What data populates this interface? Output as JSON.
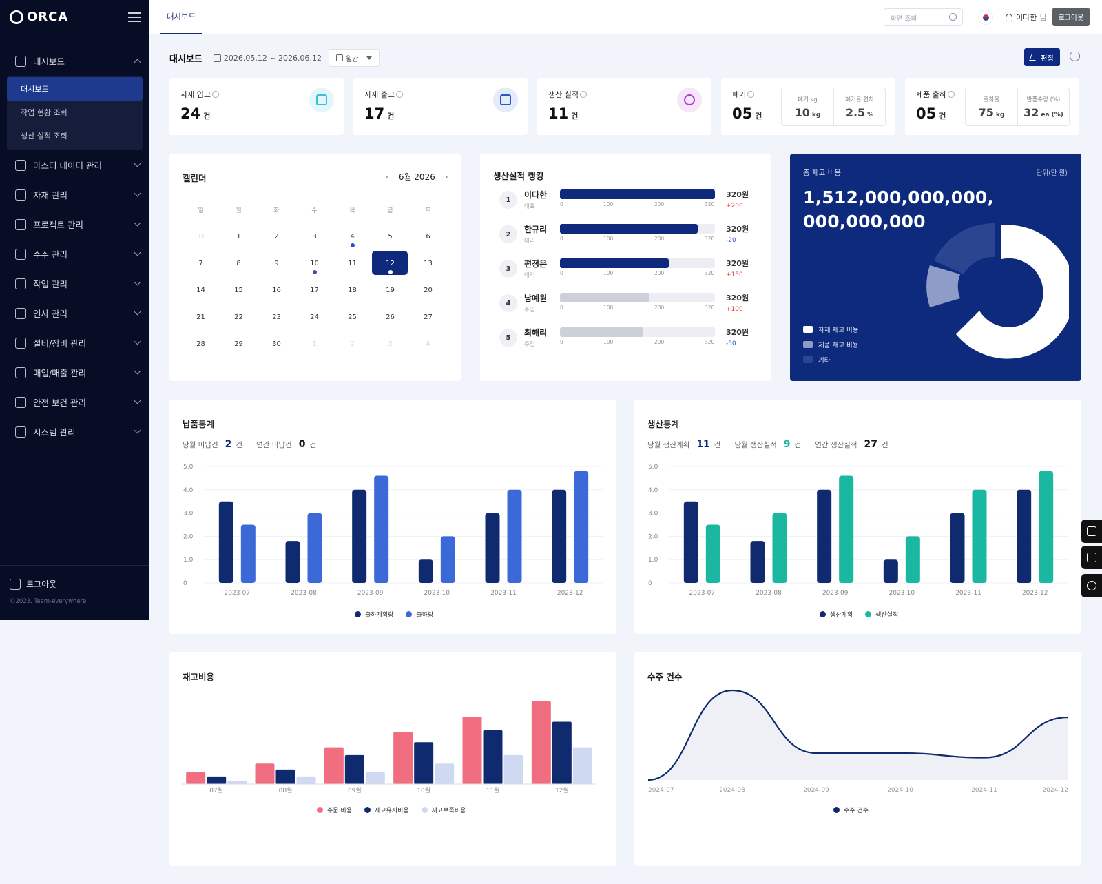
{
  "app": {
    "logo": "ORCA",
    "copyright": "©2023. Team-everywhere.",
    "logout": "로그아웃"
  },
  "sidebar": {
    "items": [
      {
        "label": "대시보드",
        "icon": "home-icon"
      },
      {
        "label": "마스터 데이터 관리",
        "icon": "database-icon"
      },
      {
        "label": "자재 관리",
        "icon": "box-icon"
      },
      {
        "label": "프로젝트 관리",
        "icon": "folder-icon"
      },
      {
        "label": "수주 관리",
        "icon": "document-icon"
      },
      {
        "label": "작업 관리",
        "icon": "tool-icon"
      },
      {
        "label": "인사 관리",
        "icon": "user-icon"
      },
      {
        "label": "설비/장비 관리",
        "icon": "wrench-icon"
      },
      {
        "label": "매입/매출 관리",
        "icon": "receipt-icon"
      },
      {
        "label": "안전 보건 관리",
        "icon": "shield-icon"
      },
      {
        "label": "시스템 관리",
        "icon": "key-icon"
      }
    ],
    "sub": [
      "대시보드",
      "작업 현황 조회",
      "생산 실적 조회"
    ]
  },
  "topbar": {
    "tab": "대시보드",
    "search_placeholder": "화면 조회",
    "user": "이다한",
    "user_suffix": "님",
    "logout": "로그아웃"
  },
  "header": {
    "title": "대시보드",
    "date_range": "2026.05.12 ~ 2026.06.12",
    "period": "월간",
    "edit": "편집"
  },
  "kpis": [
    {
      "label": "자재 입고",
      "value": "24",
      "unit": "건",
      "icon": "inbound-box-icon",
      "color": "#3bbfd9"
    },
    {
      "label": "자재 출고",
      "value": "17",
      "unit": "건",
      "icon": "outbound-box-icon",
      "color": "#2d55c8"
    },
    {
      "label": "생산 실적",
      "value": "11",
      "unit": "건",
      "icon": "pie-icon",
      "color": "#b13ad1"
    },
    {
      "label": "폐기",
      "value": "05",
      "unit": "건",
      "mini": [
        {
          "cap": "폐기 kg",
          "num": "10",
          "u": "kg"
        },
        {
          "cap": "폐기율 편차",
          "num": "2.5",
          "u": "%"
        }
      ]
    },
    {
      "label": "제품 출하",
      "value": "05",
      "unit": "건",
      "mini": [
        {
          "cap": "출하율",
          "num": "75",
          "u": "kg"
        },
        {
          "cap": "반품수량 (%)",
          "num": "32",
          "u": "ea (%)"
        }
      ]
    }
  ],
  "calendar": {
    "title": "캘린더",
    "month": "6월 2026",
    "weekdays": [
      "일",
      "월",
      "화",
      "수",
      "목",
      "금",
      "토"
    ],
    "weeks": [
      [
        "31",
        "1",
        "2",
        "3",
        "4",
        "5",
        "6"
      ],
      [
        "7",
        "8",
        "9",
        "10",
        "11",
        "12",
        "13"
      ],
      [
        "14",
        "15",
        "16",
        "17",
        "18",
        "19",
        "20"
      ],
      [
        "21",
        "22",
        "23",
        "24",
        "25",
        "26",
        "27"
      ],
      [
        "28",
        "29",
        "30",
        "1",
        "2",
        "3",
        "4"
      ]
    ],
    "selected": "12"
  },
  "ranking": {
    "title": "생산실적 랭킹",
    "ticks": [
      "0",
      "100",
      "200",
      "320"
    ],
    "rows": [
      {
        "rank": "1",
        "name": "이다한",
        "role": "대표",
        "amount": "320원",
        "change": "+200",
        "level": 320,
        "color": "#0f2a7d"
      },
      {
        "rank": "2",
        "name": "한규리",
        "role": "대리",
        "amount": "320원",
        "change": "-20",
        "level": 285,
        "color": "#0f2a7d"
      },
      {
        "rank": "3",
        "name": "편정은",
        "role": "대리",
        "amount": "320원",
        "change": "+150",
        "level": 225,
        "color": "#0f2a7d"
      },
      {
        "rank": "4",
        "name": "남예원",
        "role": "주임",
        "amount": "320원",
        "change": "+100",
        "level": 185,
        "color": "#cdd0d8"
      },
      {
        "rank": "5",
        "name": "최해리",
        "role": "주임",
        "amount": "320원",
        "change": "-50",
        "level": 172,
        "color": "#cdd0d8"
      }
    ]
  },
  "inventory": {
    "title": "총 재고 비용",
    "unit": "단위(만 원)",
    "amount": "1,512,000,000,000, 000,000,000",
    "legend": [
      {
        "label": "자재 재고 비용",
        "color": "#ffffff"
      },
      {
        "label": "제품 재고 비용",
        "color": "#8e9cc7"
      },
      {
        "label": "기타",
        "color": "#2c4590"
      }
    ]
  },
  "delivery": {
    "title": "납품통계",
    "s1_label": "당월 미납건",
    "s1": "2",
    "s2_label": "연간 미납건",
    "s2": "0",
    "unit": "건"
  },
  "production": {
    "title": "생산통계",
    "s1_label": "당월 생산계획",
    "s1": "11",
    "s2_label": "당월 생산실적",
    "s2": "9",
    "s3_label": "연간 생산실적",
    "s3": "27",
    "unit": "건"
  },
  "stock_cost": {
    "title": "재고비용"
  },
  "orders": {
    "title": "수주 건수"
  },
  "chart_data": [
    {
      "type": "bar",
      "title": "납품통계",
      "categories": [
        "2023-07",
        "2023-08",
        "2023-09",
        "2023-10",
        "2023-11",
        "2023-12"
      ],
      "ylim": [
        0,
        5.0
      ],
      "yticks": [
        "0",
        "1.0",
        "2.0",
        "3.0",
        "4.0",
        "5.0"
      ],
      "series": [
        {
          "name": "출하계획량",
          "color": "#0f2a6e",
          "values": [
            3.5,
            1.8,
            4.0,
            1.0,
            3.0,
            4.0
          ]
        },
        {
          "name": "출하량",
          "color": "#3b6ad8",
          "values": [
            2.5,
            3.0,
            4.6,
            2.0,
            4.0,
            4.8
          ]
        }
      ]
    },
    {
      "type": "bar",
      "title": "생산통계",
      "categories": [
        "2023-07",
        "2023-08",
        "2023-09",
        "2023-10",
        "2023-11",
        "2023-12"
      ],
      "ylim": [
        0,
        5.0
      ],
      "yticks": [
        "0",
        "1.0",
        "2.0",
        "3.0",
        "4.0",
        "5.0"
      ],
      "series": [
        {
          "name": "생산계획",
          "color": "#0f2a6e",
          "values": [
            3.5,
            1.8,
            4.0,
            1.0,
            3.0,
            4.0
          ]
        },
        {
          "name": "생산실적",
          "color": "#1ab8a0",
          "values": [
            2.5,
            3.0,
            4.6,
            2.0,
            4.0,
            4.8
          ]
        }
      ]
    },
    {
      "type": "bar",
      "title": "재고비용",
      "categories": [
        "07월",
        "08월",
        "09월",
        "10월",
        "11월",
        "12월"
      ],
      "ylim": [
        0,
        100
      ],
      "series": [
        {
          "name": "주문 비용",
          "color": "#f06e80",
          "values": [
            14,
            24,
            43,
            61,
            79,
            97
          ]
        },
        {
          "name": "재고유지비용",
          "color": "#0f2a6e",
          "values": [
            9,
            17,
            34,
            49,
            63,
            73
          ]
        },
        {
          "name": "재고부족비용",
          "color": "#cfd9f1",
          "values": [
            4,
            9,
            14,
            24,
            34,
            43
          ]
        }
      ]
    },
    {
      "type": "area",
      "title": "수주 건수",
      "categories": [
        "2024-07",
        "2024-08",
        "2024-09",
        "2024-10",
        "2024-11",
        "2024-12"
      ],
      "ylim": [
        0,
        100
      ],
      "series": [
        {
          "name": "수주 건수",
          "color": "#0f2a6e",
          "values": [
            0,
            100,
            30,
            30,
            25,
            70
          ]
        }
      ]
    }
  ]
}
